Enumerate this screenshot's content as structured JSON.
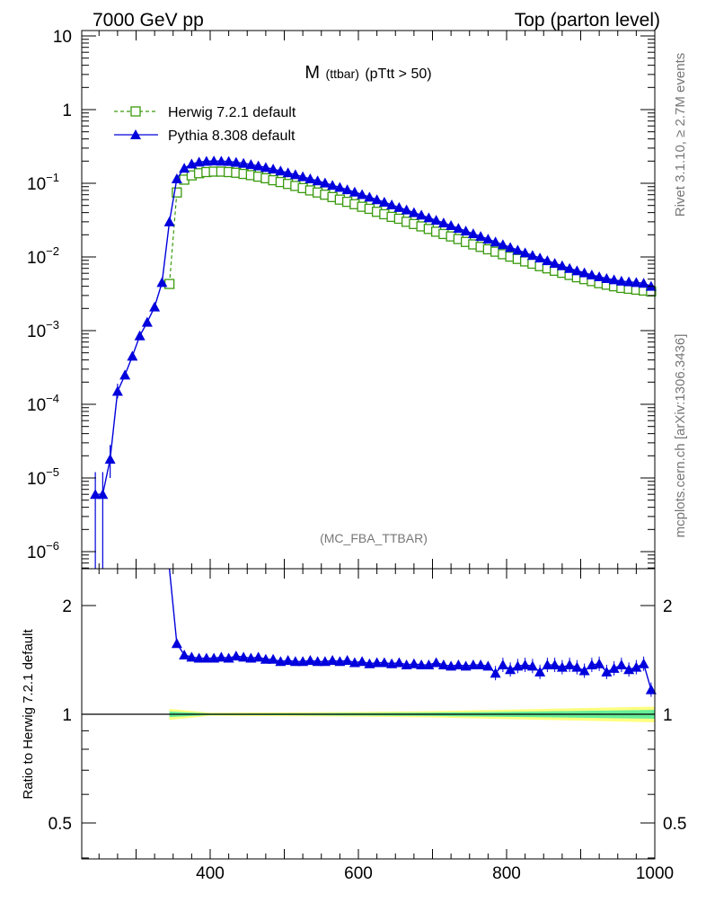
{
  "header": {
    "left": "7000 GeV pp",
    "right": "Top (parton level)"
  },
  "side_labels": {
    "rivet": "Rivet 3.1.10, ≥ 2.7M events",
    "mcplots": "mcplots.cern.ch [arXiv:1306.3436]"
  },
  "watermark": "(MC_FBA_TTBAR)",
  "colors": {
    "herwig": "#3a9a0e",
    "pythia": "#0000dd",
    "band_outer": "#ffff80",
    "band_inner": "#66ee99"
  },
  "chart_data": [
    {
      "type": "line",
      "title_main": "M",
      "title_sub": "(ttbar)",
      "title_cut": "(pTtt > 50)",
      "xlabel": "",
      "ylabel": "",
      "yscale": "log",
      "xlim": [
        220,
        1000
      ],
      "ylim": [
        5e-07,
        13
      ],
      "x_ticks": [
        "400",
        "600",
        "800",
        "1000"
      ],
      "y_ticks": [
        "10^-6",
        "10^-5",
        "10^-4",
        "10^-3",
        "10^-2",
        "10^-1",
        "1",
        "10"
      ],
      "legend_position": "top-left",
      "series": [
        {
          "name": "Herwig 7.2.1 default",
          "marker": "open-square",
          "line": "dashed",
          "x": [
            345,
            355,
            365,
            375,
            385,
            395,
            405,
            415,
            425,
            435,
            445,
            455,
            465,
            475,
            485,
            495,
            505,
            515,
            525,
            535,
            545,
            555,
            565,
            575,
            585,
            595,
            605,
            615,
            625,
            635,
            645,
            655,
            665,
            675,
            685,
            695,
            705,
            715,
            725,
            735,
            745,
            755,
            765,
            775,
            785,
            795,
            805,
            815,
            825,
            835,
            845,
            855,
            865,
            875,
            885,
            895,
            905,
            915,
            925,
            935,
            945,
            955,
            965,
            975,
            985,
            995
          ],
          "y": [
            0.0043,
            0.075,
            0.112,
            0.128,
            0.137,
            0.142,
            0.144,
            0.144,
            0.142,
            0.139,
            0.134,
            0.129,
            0.123,
            0.117,
            0.11,
            0.104,
            0.098,
            0.092,
            0.086,
            0.08,
            0.075,
            0.07,
            0.065,
            0.06,
            0.056,
            0.052,
            0.048,
            0.045,
            0.041,
            0.038,
            0.035,
            0.033,
            0.03,
            0.028,
            0.026,
            0.024,
            0.022,
            0.0205,
            0.019,
            0.0175,
            0.016,
            0.0148,
            0.0137,
            0.0127,
            0.0118,
            0.0109,
            0.0101,
            0.0094,
            0.0087,
            0.0081,
            0.0075,
            0.007,
            0.0065,
            0.0061,
            0.0057,
            0.0053,
            0.005,
            0.0047,
            0.0044,
            0.0042,
            0.004,
            0.0038,
            0.0037,
            0.0036,
            0.0035,
            0.0034
          ]
        },
        {
          "name": "Pythia 8.308 default",
          "marker": "filled-triangle",
          "line": "solid",
          "x": [
            245,
            255,
            265,
            275,
            285,
            295,
            305,
            315,
            325,
            335,
            345,
            355,
            365,
            375,
            385,
            395,
            405,
            415,
            425,
            435,
            445,
            455,
            465,
            475,
            485,
            495,
            505,
            515,
            525,
            535,
            545,
            555,
            565,
            575,
            585,
            595,
            605,
            615,
            625,
            635,
            645,
            655,
            665,
            675,
            685,
            695,
            705,
            715,
            725,
            735,
            745,
            755,
            765,
            775,
            785,
            795,
            805,
            815,
            825,
            835,
            845,
            855,
            865,
            875,
            885,
            895,
            905,
            915,
            925,
            935,
            945,
            955,
            965,
            975,
            985,
            995
          ],
          "y": [
            6e-06,
            6e-06,
            1.8e-05,
            0.00015,
            0.00025,
            0.00045,
            0.00085,
            0.0013,
            0.0021,
            0.0045,
            0.03,
            0.115,
            0.16,
            0.183,
            0.194,
            0.199,
            0.201,
            0.2,
            0.198,
            0.193,
            0.187,
            0.18,
            0.172,
            0.164,
            0.156,
            0.147,
            0.139,
            0.131,
            0.123,
            0.115,
            0.108,
            0.101,
            0.094,
            0.088,
            0.082,
            0.076,
            0.0705,
            0.065,
            0.06,
            0.0555,
            0.051,
            0.047,
            0.0435,
            0.04,
            0.037,
            0.034,
            0.0315,
            0.029,
            0.0267,
            0.0245,
            0.0225,
            0.0207,
            0.019,
            0.0175,
            0.016,
            0.0147,
            0.0135,
            0.0124,
            0.0114,
            0.0105,
            0.0097,
            0.0089,
            0.0082,
            0.0076,
            0.007,
            0.0065,
            0.0061,
            0.0057,
            0.0054,
            0.0051,
            0.0049,
            0.0047,
            0.0046,
            0.0045,
            0.0044,
            0.004
          ]
        }
      ]
    },
    {
      "type": "line",
      "xlabel": "",
      "ylabel": "Ratio to Herwig 7.2.1 default",
      "yscale": "log",
      "xlim": [
        220,
        1000
      ],
      "ylim": [
        0.4,
        2.55
      ],
      "x_ticks": [
        "400",
        "600",
        "800",
        "1000"
      ],
      "y_ticks": [
        "0.5",
        "1",
        "2"
      ],
      "reference_line": 1,
      "band": {
        "x": [
          345,
          400,
          500,
          600,
          700,
          800,
          900,
          1000
        ],
        "outer_half_width": [
          0.035,
          0.01,
          0.012,
          0.015,
          0.02,
          0.03,
          0.04,
          0.05
        ],
        "inner_half_width": [
          0.018,
          0.005,
          0.006,
          0.008,
          0.011,
          0.016,
          0.022,
          0.028
        ]
      },
      "series": [
        {
          "name": "Pythia 8.308 default",
          "marker": "filled-triangle",
          "x": [
            355,
            365,
            375,
            385,
            395,
            405,
            415,
            425,
            435,
            445,
            455,
            465,
            475,
            485,
            495,
            505,
            515,
            525,
            535,
            545,
            555,
            565,
            575,
            585,
            595,
            605,
            615,
            625,
            635,
            645,
            655,
            665,
            675,
            685,
            695,
            705,
            715,
            725,
            735,
            745,
            755,
            765,
            775,
            785,
            795,
            805,
            815,
            825,
            835,
            845,
            855,
            865,
            875,
            885,
            895,
            905,
            915,
            925,
            935,
            945,
            955,
            965,
            975,
            985,
            995
          ],
          "y": [
            1.57,
            1.46,
            1.44,
            1.43,
            1.43,
            1.43,
            1.44,
            1.43,
            1.45,
            1.44,
            1.43,
            1.44,
            1.42,
            1.42,
            1.4,
            1.41,
            1.4,
            1.4,
            1.41,
            1.4,
            1.4,
            1.41,
            1.4,
            1.41,
            1.39,
            1.4,
            1.38,
            1.39,
            1.39,
            1.38,
            1.39,
            1.37,
            1.38,
            1.37,
            1.37,
            1.39,
            1.37,
            1.36,
            1.37,
            1.36,
            1.37,
            1.37,
            1.36,
            1.3,
            1.37,
            1.33,
            1.36,
            1.37,
            1.36,
            1.31,
            1.37,
            1.37,
            1.35,
            1.37,
            1.35,
            1.32,
            1.37,
            1.38,
            1.31,
            1.34,
            1.37,
            1.33,
            1.35,
            1.38,
            1.17
          ]
        }
      ]
    }
  ]
}
